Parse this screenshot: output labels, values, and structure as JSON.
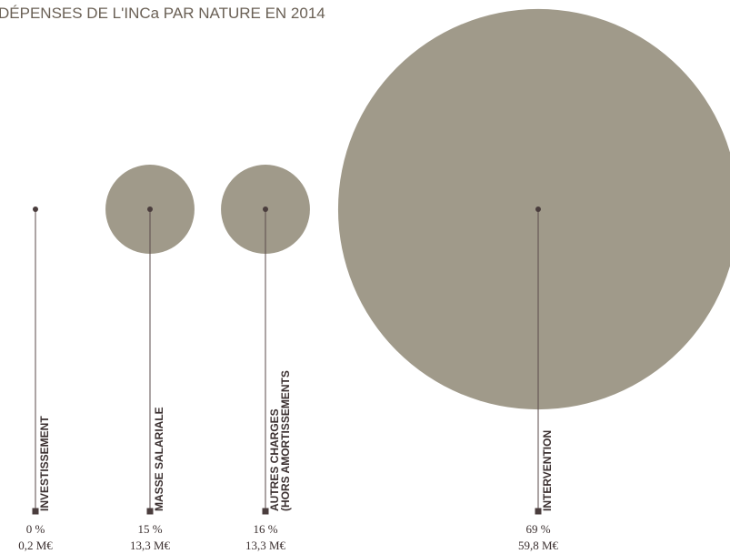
{
  "chart_data": {
    "type": "bubble",
    "title": "DÉPENSES DE L'INCa PAR NATURE EN 2014",
    "categories": [
      [
        "INVESTISSEMENT"
      ],
      [
        "MASSE SALARIALE"
      ],
      [
        "AUTRES CHARGES",
        "(HORS AMORTISSEMENTS"
      ],
      [
        "INTERVENTION"
      ]
    ],
    "values": [
      0.2,
      13.3,
      13.3,
      59.8
    ],
    "value_labels": [
      "0,2 M€",
      "13,3 M€",
      "13,3 M€",
      "59,8 M€"
    ],
    "shares": [
      0,
      15,
      16,
      69
    ],
    "share_labels": [
      "0 %",
      "15 %",
      "16 %",
      "69 %"
    ],
    "color": "#a09a8a"
  }
}
